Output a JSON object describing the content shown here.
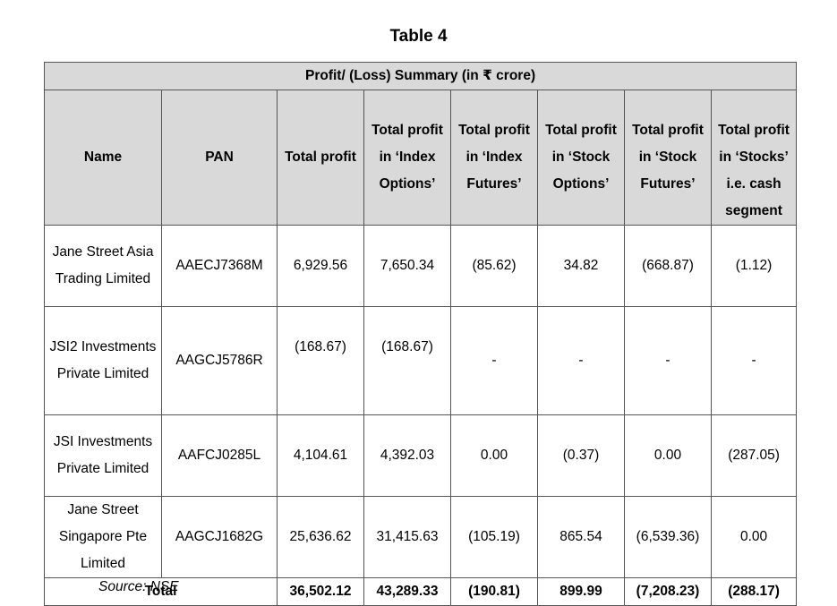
{
  "title": "Table 4",
  "caption": "Profit/ (Loss) Summary (in ₹ crore)",
  "columns": [
    "Name",
    "PAN",
    "Total profit",
    "Total profit in ‘Index Options’",
    "Total profit in ‘Index Futures’",
    "Total profit in ‘Stock Options’",
    "Total profit in ‘Stock Futures’",
    "Total profit in ‘Stocks’ i.e. cash segment"
  ],
  "rows": [
    {
      "name": "Jane Street Asia Trading Limited",
      "pan": "AAECJ7368M",
      "values": [
        "6,929.56",
        "7,650.34",
        "(85.62)",
        "34.82",
        "(668.87)",
        "(1.12)"
      ]
    },
    {
      "name": "JSI2 Investments Private Limited",
      "pan": "AAGCJ5786R",
      "values": [
        "(168.67)",
        "(168.67)",
        "-",
        "-",
        "-",
        "-"
      ]
    },
    {
      "name": "JSI Investments Private Limited",
      "pan": "AAFCJ0285L",
      "values": [
        "4,104.61",
        "4,392.03",
        "0.00",
        "(0.37)",
        "0.00",
        "(287.05)"
      ]
    },
    {
      "name": "Jane Street Singapore Pte Limited",
      "pan": "AAGCJ1682G",
      "values": [
        "25,636.62",
        "31,415.63",
        "(105.19)",
        "865.54",
        "(6,539.36)",
        "0.00"
      ]
    }
  ],
  "total": {
    "label": "Total",
    "values": [
      "36,502.12",
      "43,289.33",
      "(190.81)",
      "899.99",
      "(7,208.23)",
      "(288.17)"
    ]
  },
  "source": "Source: NSE"
}
